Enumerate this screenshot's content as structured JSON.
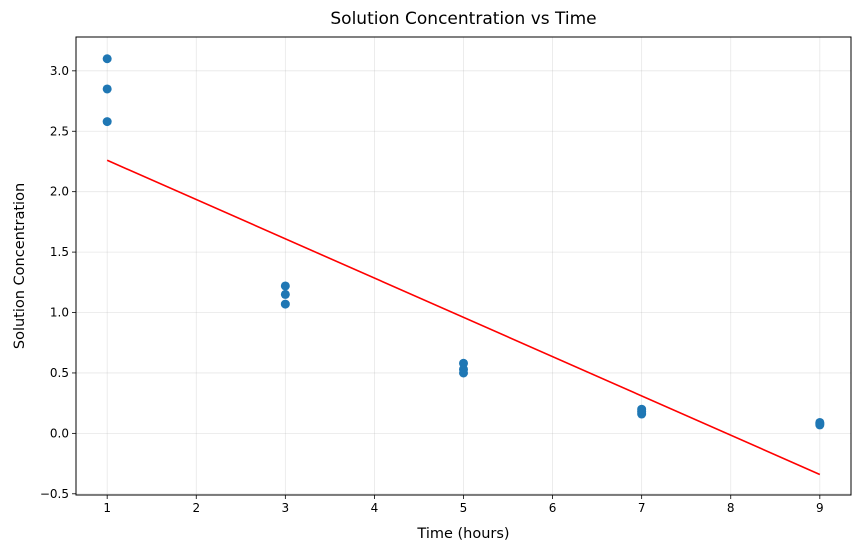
{
  "chart_data": {
    "type": "scatter",
    "title": "Solution Concentration vs Time",
    "xlabel": "Time (hours)",
    "ylabel": "Solution Concentration",
    "xlim": [
      0.65,
      9.35
    ],
    "ylim": [
      -0.51,
      3.28
    ],
    "x_ticks": [
      1,
      2,
      3,
      4,
      5,
      6,
      7,
      8,
      9
    ],
    "y_ticks": [
      -0.5,
      0.0,
      0.5,
      1.0,
      1.5,
      2.0,
      2.5,
      3.0
    ],
    "y_tick_labels": [
      "−0.5",
      "0.0",
      "0.5",
      "1.0",
      "1.5",
      "2.0",
      "2.5",
      "3.0"
    ],
    "grid": true,
    "series": [
      {
        "kind": "scatter",
        "color": "#1f77b4",
        "points": [
          {
            "x": 1,
            "y": 3.1
          },
          {
            "x": 1,
            "y": 2.85
          },
          {
            "x": 1,
            "y": 2.58
          },
          {
            "x": 3,
            "y": 1.22
          },
          {
            "x": 3,
            "y": 1.15
          },
          {
            "x": 3,
            "y": 1.07
          },
          {
            "x": 5,
            "y": 0.58
          },
          {
            "x": 5,
            "y": 0.53
          },
          {
            "x": 5,
            "y": 0.5
          },
          {
            "x": 7,
            "y": 0.2
          },
          {
            "x": 7,
            "y": 0.18
          },
          {
            "x": 7,
            "y": 0.16
          },
          {
            "x": 9,
            "y": 0.09
          },
          {
            "x": 9,
            "y": 0.08
          },
          {
            "x": 9,
            "y": 0.07
          }
        ]
      },
      {
        "kind": "line",
        "color": "#ff0000",
        "points": [
          {
            "x": 1,
            "y": 2.26
          },
          {
            "x": 9,
            "y": -0.34
          }
        ]
      }
    ]
  }
}
